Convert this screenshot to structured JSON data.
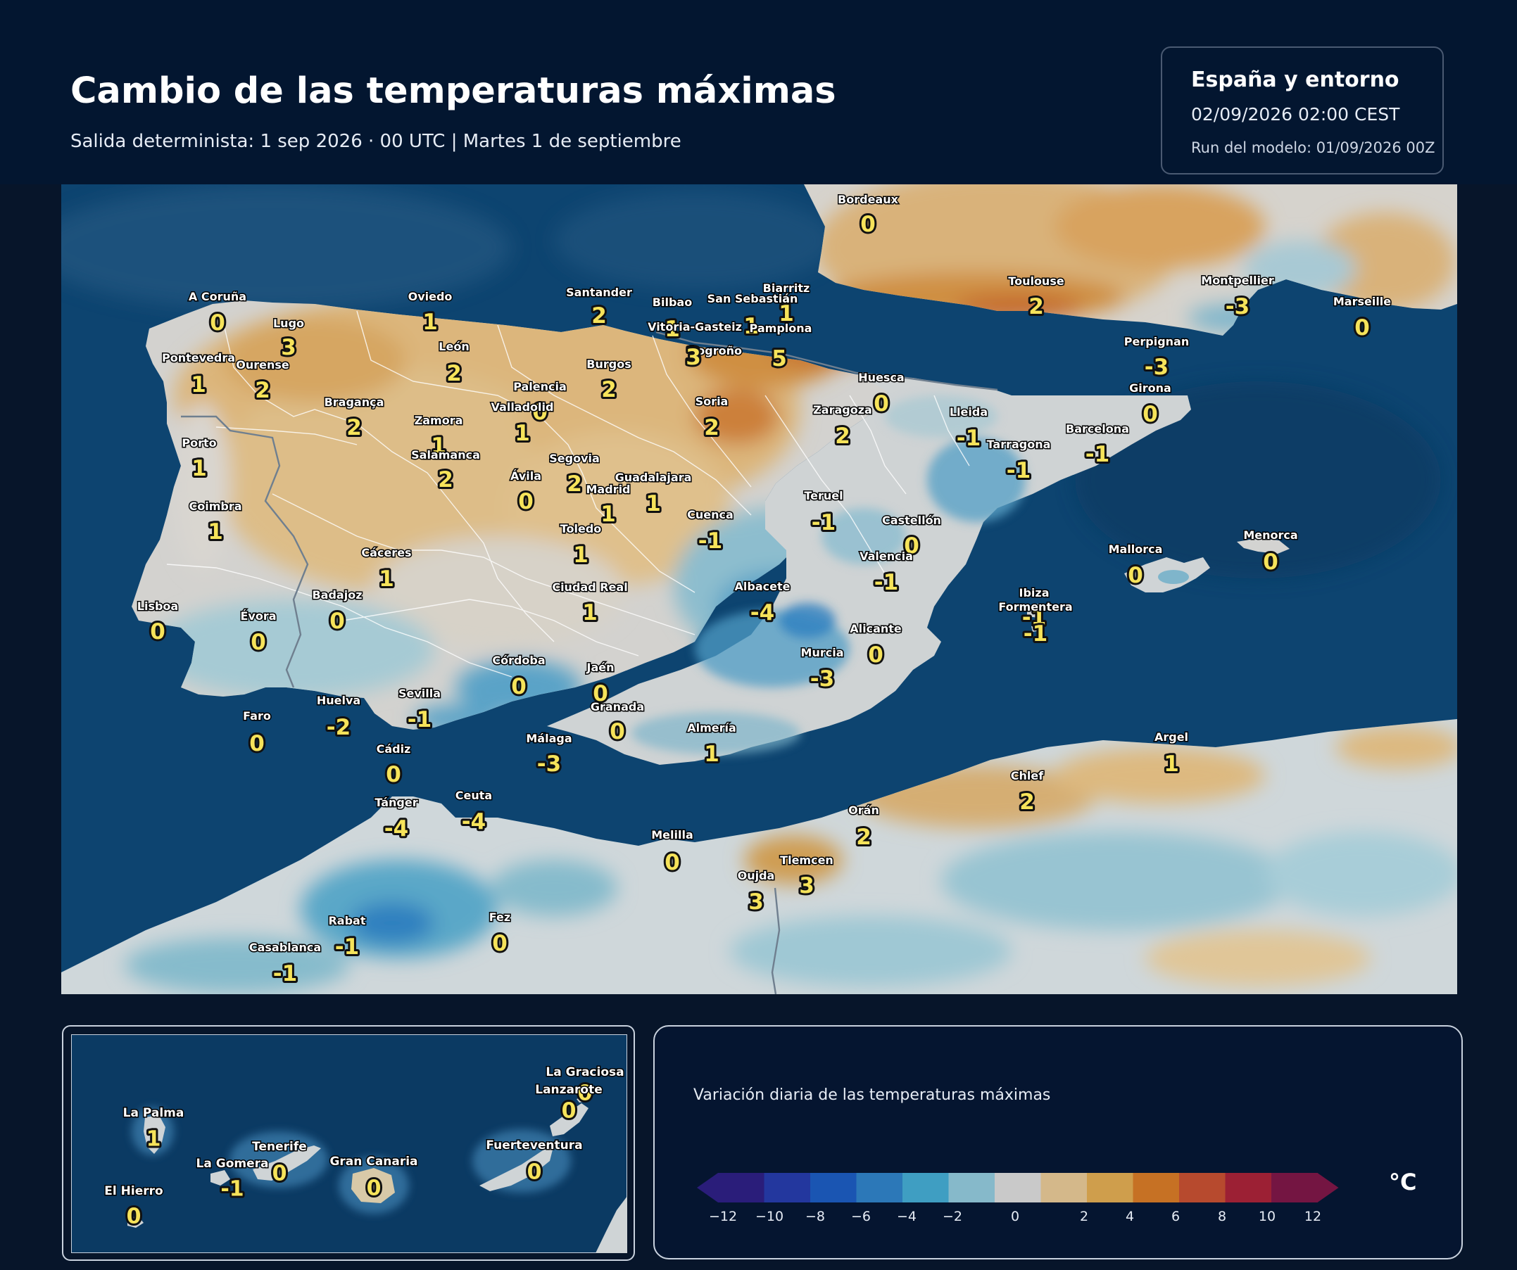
{
  "header": {
    "title": "Cambio de las temperaturas máximas",
    "subtitle": "Salida determinista: 1 sep 2026 · 00 UTC  |  Martes 1 de septiembre"
  },
  "info": {
    "region": "España y entorno",
    "date": "02/09/2026  02:00 CEST",
    "run": "Run del modelo: 01/09/2026 00Z"
  },
  "colors": {
    "sea": "#0d4470",
    "land_neutral": "#d3d3d1",
    "border": "#ffffff",
    "value_text": "#f6e35a"
  },
  "cities": [
    {
      "name": "Bordeaux",
      "value": "0"
    },
    {
      "name": "Toulouse",
      "value": "2"
    },
    {
      "name": "Montpellier",
      "value": "-3"
    },
    {
      "name": "Marseille",
      "value": "0"
    },
    {
      "name": "Perpignan",
      "value": "-3"
    },
    {
      "name": "Biarritz",
      "value": "1"
    },
    {
      "name": "San Sebastián",
      "value": "1"
    },
    {
      "name": "Bilbao",
      "value": "1"
    },
    {
      "name": "Vitoria-Gasteiz",
      "value": "3"
    },
    {
      "name": "Pamplona",
      "value": "5"
    },
    {
      "name": "Logroño",
      "value": "3"
    },
    {
      "name": "Santander",
      "value": "2"
    },
    {
      "name": "Oviedo",
      "value": "1"
    },
    {
      "name": "A Coruña",
      "value": "0"
    },
    {
      "name": "Lugo",
      "value": "3"
    },
    {
      "name": "Pontevedra",
      "value": "1"
    },
    {
      "name": "Ourense",
      "value": "2"
    },
    {
      "name": "León",
      "value": "2"
    },
    {
      "name": "Burgos",
      "value": "2"
    },
    {
      "name": "Palencia",
      "value": "0"
    },
    {
      "name": "Valladolid",
      "value": "1"
    },
    {
      "name": "Soria",
      "value": "2"
    },
    {
      "name": "Huesca",
      "value": "0"
    },
    {
      "name": "Zaragoza",
      "value": "2"
    },
    {
      "name": "Lleida",
      "value": "-1"
    },
    {
      "name": "Girona",
      "value": "0"
    },
    {
      "name": "Barcelona",
      "value": "-1"
    },
    {
      "name": "Tarragona",
      "value": "-1"
    },
    {
      "name": "Bragança",
      "value": "2"
    },
    {
      "name": "Zamora",
      "value": "1"
    },
    {
      "name": "Salamanca",
      "value": "2"
    },
    {
      "name": "Segovia",
      "value": "2"
    },
    {
      "name": "Ávila",
      "value": "0"
    },
    {
      "name": "Madrid",
      "value": "1"
    },
    {
      "name": "Guadalajara",
      "value": "1"
    },
    {
      "name": "Porto",
      "value": "1"
    },
    {
      "name": "Coimbra",
      "value": "1"
    },
    {
      "name": "Teruel",
      "value": "-1"
    },
    {
      "name": "Castellón",
      "value": "0"
    },
    {
      "name": "Cuenca",
      "value": "-1"
    },
    {
      "name": "Toledo",
      "value": "1"
    },
    {
      "name": "Cáceres",
      "value": "1"
    },
    {
      "name": "Valencia",
      "value": "-1"
    },
    {
      "name": "Ciudad Real",
      "value": "1"
    },
    {
      "name": "Albacete",
      "value": "-4"
    },
    {
      "name": "Badajoz",
      "value": "0"
    },
    {
      "name": "Lisboa",
      "value": "0"
    },
    {
      "name": "Évora",
      "value": "0"
    },
    {
      "name": "Alicante",
      "value": "0"
    },
    {
      "name": "Murcia",
      "value": "-3"
    },
    {
      "name": "Córdoba",
      "value": "0"
    },
    {
      "name": "Jaén",
      "value": "0"
    },
    {
      "name": "Granada",
      "value": "0"
    },
    {
      "name": "Sevilla",
      "value": "-1"
    },
    {
      "name": "Huelva",
      "value": "-2"
    },
    {
      "name": "Faro",
      "value": "0"
    },
    {
      "name": "Almería",
      "value": "1"
    },
    {
      "name": "Málaga",
      "value": "-3"
    },
    {
      "name": "Cádiz",
      "value": "0"
    },
    {
      "name": "Tánger",
      "value": "-4"
    },
    {
      "name": "Ceuta",
      "value": "-4"
    },
    {
      "name": "Melilla",
      "value": "0"
    },
    {
      "name": "Orán",
      "value": "2"
    },
    {
      "name": "Tlemcen",
      "value": "3"
    },
    {
      "name": "Oujda",
      "value": "3"
    },
    {
      "name": "Chlef",
      "value": "2"
    },
    {
      "name": "Argel",
      "value": "1"
    },
    {
      "name": "Rabat",
      "value": "-1"
    },
    {
      "name": "Casablanca",
      "value": "-1"
    },
    {
      "name": "Fez",
      "value": "0"
    },
    {
      "name": "Menorca",
      "value": "0"
    },
    {
      "name": "Mallorca",
      "value": "0"
    },
    {
      "name": "Ibiza",
      "value": "-1"
    },
    {
      "name": "Formentera",
      "value": "-1"
    }
  ],
  "canary": [
    {
      "name": "La Graciosa",
      "value": "0"
    },
    {
      "name": "Lanzarote",
      "value": "0"
    },
    {
      "name": "La Palma",
      "value": "1"
    },
    {
      "name": "Tenerife",
      "value": "0"
    },
    {
      "name": "La Gomera",
      "value": "-1"
    },
    {
      "name": "Gran Canaria",
      "value": "0"
    },
    {
      "name": "Fuerteventura",
      "value": "0"
    },
    {
      "name": "El Hierro",
      "value": "0"
    }
  ],
  "legend": {
    "title": "Variación diaria de las temperaturas máximas",
    "unit": "°C",
    "ticks": [
      "−12",
      "−10",
      "−8",
      "−6",
      "−4",
      "−2",
      "0",
      "2",
      "4",
      "6",
      "8",
      "10",
      "12"
    ],
    "colors": [
      "#2a1d7a",
      "#23379e",
      "#1a55b2",
      "#2c78b8",
      "#3f9ec2",
      "#86b9ca",
      "#c9c9c9",
      "#d4b88a",
      "#cf9e4c",
      "#c67124",
      "#b74a2e",
      "#9c2034",
      "#741542"
    ]
  }
}
